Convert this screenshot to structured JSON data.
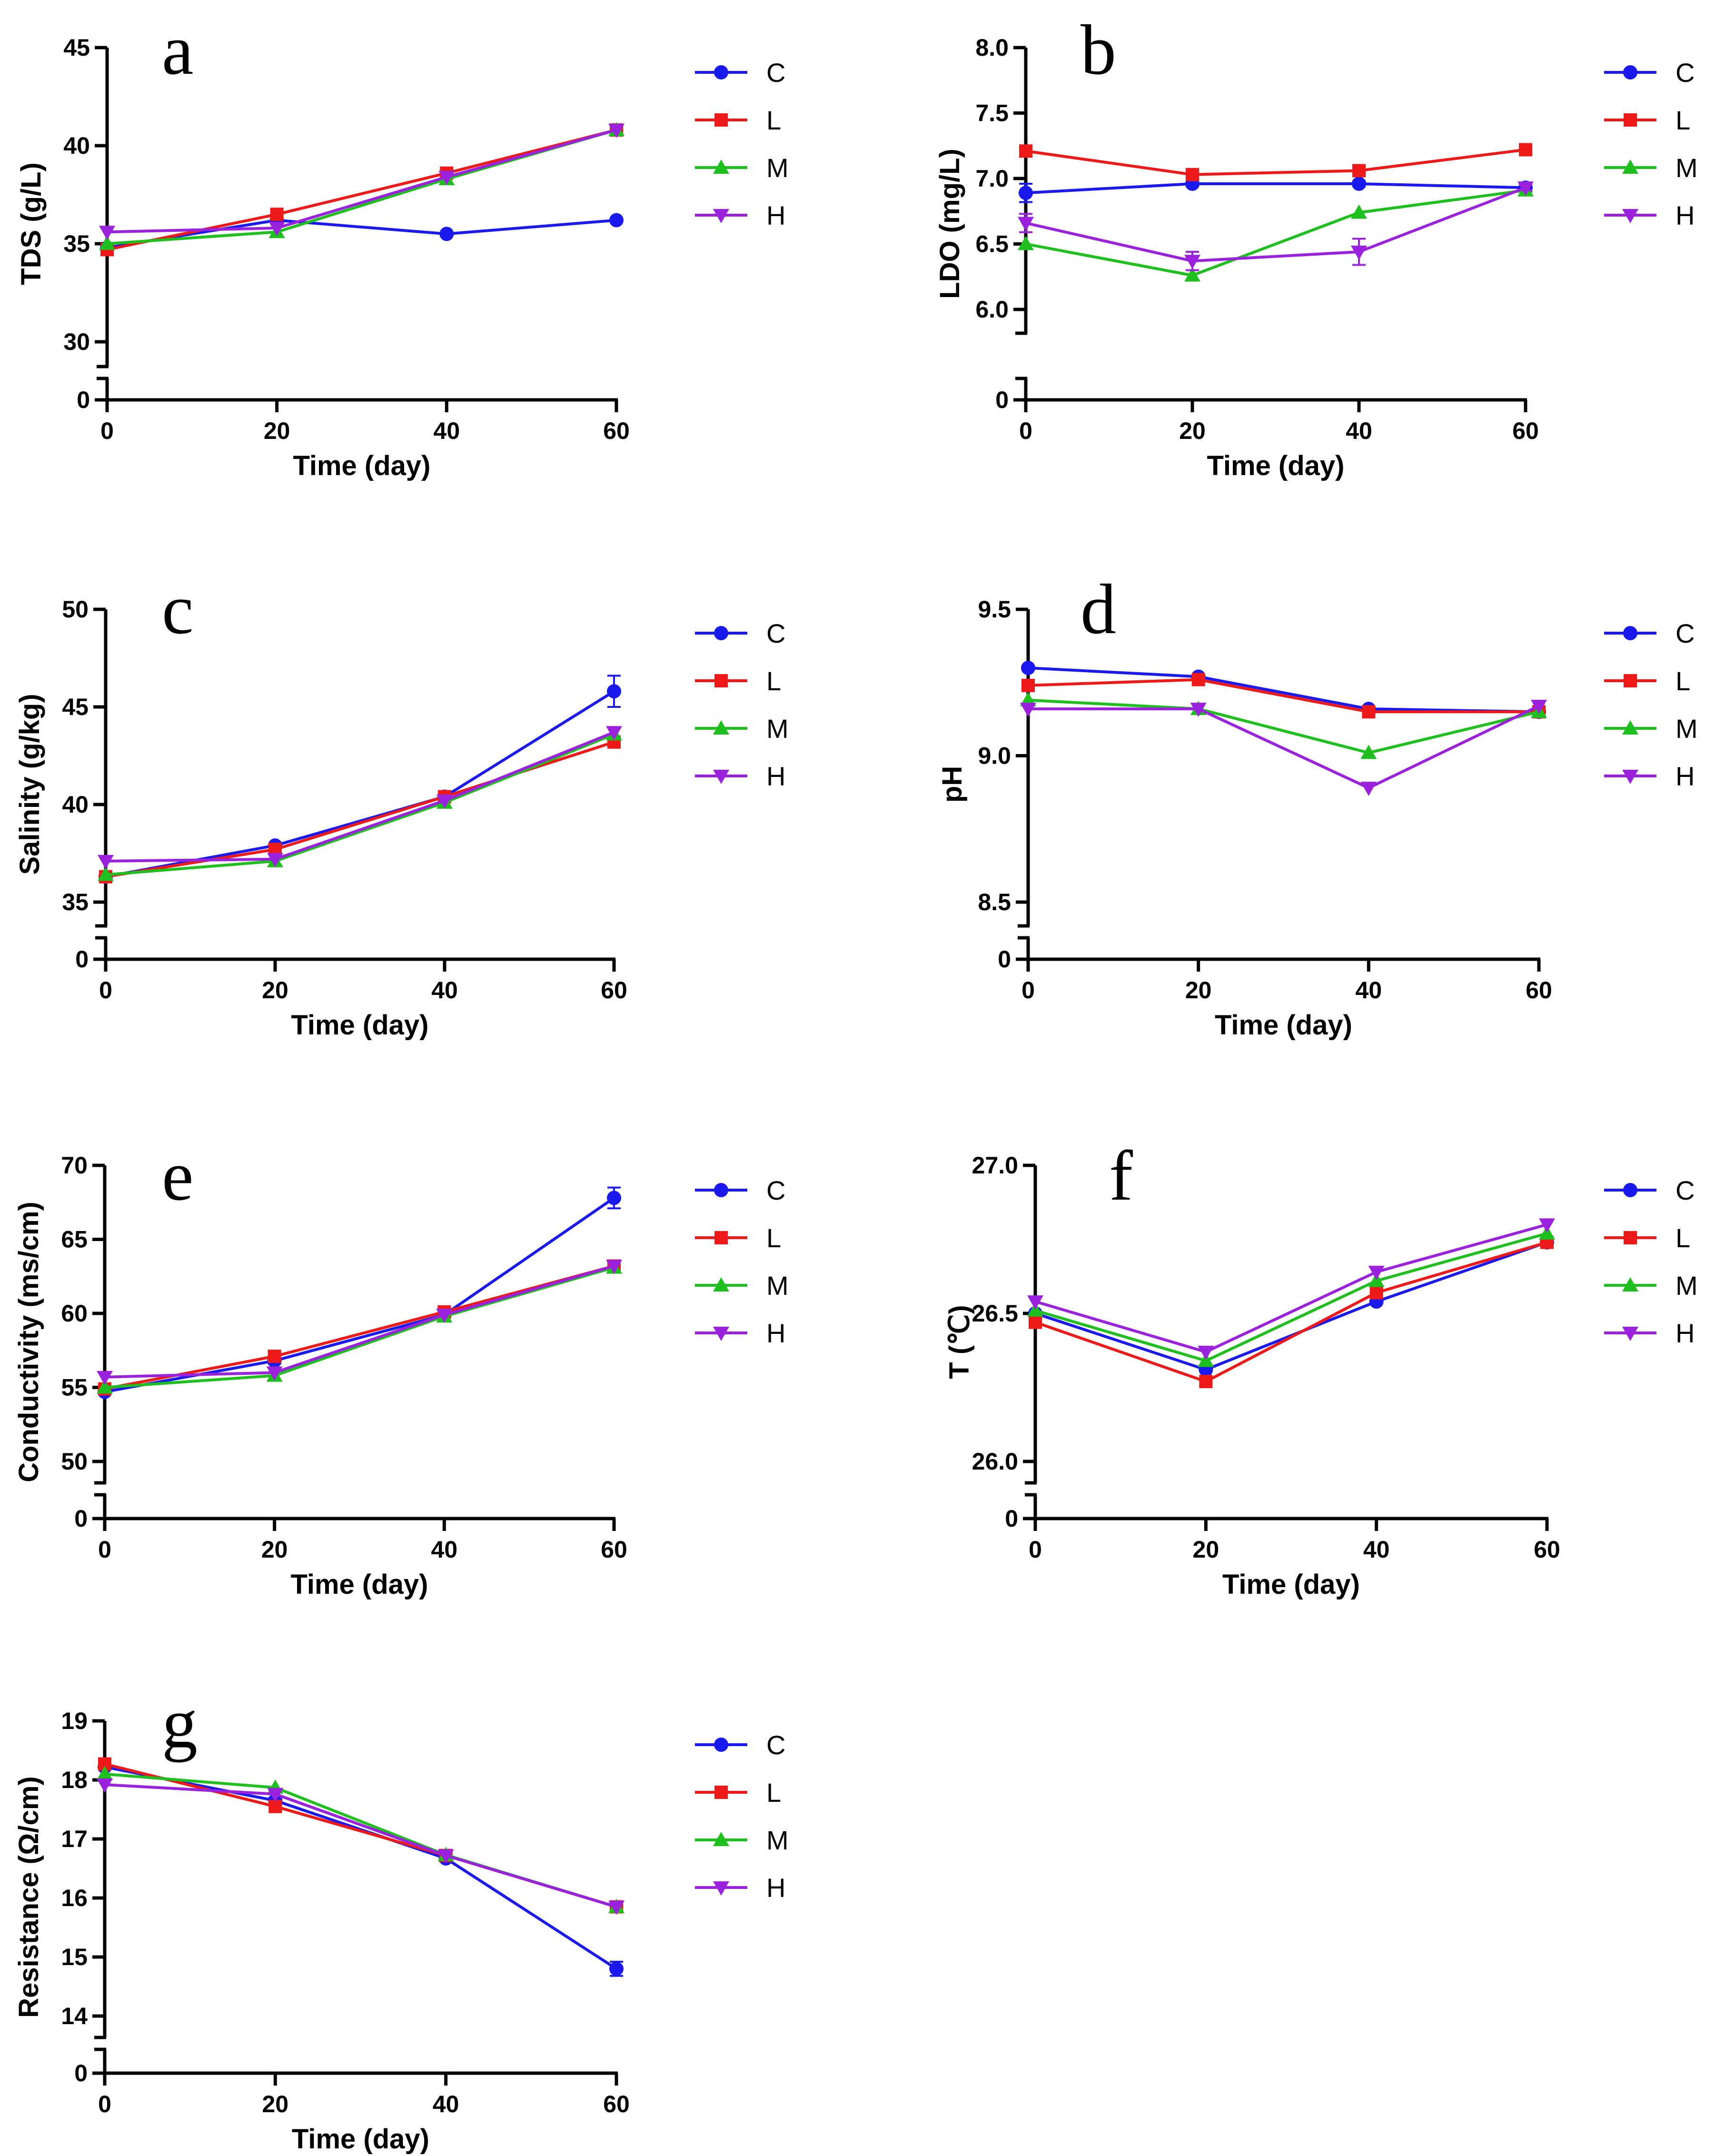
{
  "series_colors": {
    "C": "#1a1aee",
    "L": "#ee1a1a",
    "M": "#1fbf1f",
    "H": "#9a22dd"
  },
  "chart_data": [
    {
      "id": "a",
      "type": "line",
      "letter": "a",
      "xlabel": "Time (day)",
      "ylabel": "TDS (g/L)",
      "x": [
        0,
        20,
        40,
        60
      ],
      "x_ticks": [
        "0",
        "20",
        "40",
        "60"
      ],
      "ylim": [
        30,
        45
      ],
      "y_ticks": [
        "30",
        "35",
        "40",
        "45"
      ],
      "y_break_zero": "0",
      "series": [
        {
          "name": "C",
          "values": [
            34.8,
            36.2,
            35.5,
            36.2
          ]
        },
        {
          "name": "L",
          "values": [
            34.7,
            36.5,
            38.6,
            40.8
          ]
        },
        {
          "name": "M",
          "values": [
            35.0,
            35.6,
            38.3,
            40.8
          ]
        },
        {
          "name": "H",
          "values": [
            35.6,
            35.8,
            38.4,
            40.8
          ]
        }
      ]
    },
    {
      "id": "b",
      "type": "line",
      "letter": "b",
      "xlabel": "Time (day)",
      "ylabel": "LDO (mg/L)",
      "x": [
        0,
        20,
        40,
        60
      ],
      "x_ticks": [
        "0",
        "20",
        "40",
        "60"
      ],
      "ylim": [
        6.0,
        8.0
      ],
      "y_ticks": [
        "6.0",
        "6.5",
        "7.0",
        "7.5",
        "8.0"
      ],
      "y_break_zero": "0",
      "series": [
        {
          "name": "C",
          "values": [
            6.89,
            6.96,
            6.96,
            6.93
          ],
          "errors": [
            0.07,
            0.02,
            0.02,
            0.03
          ]
        },
        {
          "name": "L",
          "values": [
            7.21,
            7.03,
            7.06,
            7.22
          ]
        },
        {
          "name": "M",
          "values": [
            6.5,
            6.26,
            6.74,
            6.91
          ]
        },
        {
          "name": "H",
          "values": [
            6.66,
            6.37,
            6.44,
            6.93
          ],
          "errors": [
            0.07,
            0.07,
            0.1,
            0.02
          ]
        }
      ]
    },
    {
      "id": "c",
      "type": "line",
      "letter": "c",
      "xlabel": "Time (day)",
      "ylabel": "Salinity (g/kg)",
      "x": [
        0,
        20,
        40,
        60
      ],
      "x_ticks": [
        "0",
        "20",
        "40",
        "60"
      ],
      "ylim": [
        35,
        50
      ],
      "y_ticks": [
        "35",
        "40",
        "45",
        "50"
      ],
      "y_break_zero": "0",
      "series": [
        {
          "name": "C",
          "values": [
            36.3,
            37.9,
            40.4,
            45.8
          ],
          "errors": [
            0.1,
            0.1,
            0.1,
            0.8
          ]
        },
        {
          "name": "L",
          "values": [
            36.3,
            37.7,
            40.4,
            43.2
          ]
        },
        {
          "name": "M",
          "values": [
            36.4,
            37.1,
            40.1,
            43.6
          ]
        },
        {
          "name": "H",
          "values": [
            37.1,
            37.2,
            40.2,
            43.7
          ]
        }
      ]
    },
    {
      "id": "d",
      "type": "line",
      "letter": "d",
      "xlabel": "Time (day)",
      "ylabel": "pH",
      "x": [
        0,
        20,
        40,
        60
      ],
      "x_ticks": [
        "0",
        "20",
        "40",
        "60"
      ],
      "ylim": [
        8.5,
        9.5
      ],
      "y_ticks": [
        "8.5",
        "9.0",
        "9.5"
      ],
      "y_break_zero": "0",
      "series": [
        {
          "name": "C",
          "values": [
            9.3,
            9.27,
            9.16,
            9.15
          ]
        },
        {
          "name": "L",
          "values": [
            9.24,
            9.26,
            9.15,
            9.15
          ]
        },
        {
          "name": "M",
          "values": [
            9.19,
            9.16,
            9.01,
            9.15
          ]
        },
        {
          "name": "H",
          "values": [
            9.16,
            9.16,
            8.89,
            9.17
          ]
        }
      ]
    },
    {
      "id": "e",
      "type": "line",
      "letter": "e",
      "xlabel": "Time (day)",
      "ylabel": "Conductivity (ms/cm)",
      "x": [
        0,
        20,
        40,
        60
      ],
      "x_ticks": [
        "0",
        "20",
        "40",
        "60"
      ],
      "ylim": [
        50,
        70
      ],
      "y_ticks": [
        "50",
        "55",
        "60",
        "65",
        "70"
      ],
      "y_break_zero": "0",
      "series": [
        {
          "name": "C",
          "values": [
            54.7,
            56.8,
            59.9,
            67.8
          ],
          "errors": [
            0.2,
            0.2,
            0.2,
            0.7
          ]
        },
        {
          "name": "L",
          "values": [
            54.9,
            57.1,
            60.1,
            63.2
          ]
        },
        {
          "name": "M",
          "values": [
            55.0,
            55.8,
            59.8,
            63.1
          ]
        },
        {
          "name": "H",
          "values": [
            55.7,
            56.0,
            59.9,
            63.2
          ]
        }
      ]
    },
    {
      "id": "f",
      "type": "line",
      "letter": "f",
      "xlabel": "Time (day)",
      "ylabel": "T (℃)",
      "x": [
        0,
        20,
        40,
        60
      ],
      "x_ticks": [
        "0",
        "20",
        "40",
        "60"
      ],
      "ylim": [
        26.0,
        27.0
      ],
      "y_ticks": [
        "26.0",
        "26.5",
        "27.0"
      ],
      "y_break_zero": "0",
      "series": [
        {
          "name": "C",
          "values": [
            26.5,
            26.31,
            26.54,
            26.74
          ]
        },
        {
          "name": "L",
          "values": [
            26.47,
            26.27,
            26.57,
            26.74
          ]
        },
        {
          "name": "M",
          "values": [
            26.51,
            26.34,
            26.61,
            26.77
          ]
        },
        {
          "name": "H",
          "values": [
            26.54,
            26.37,
            26.64,
            26.8
          ]
        }
      ]
    },
    {
      "id": "g",
      "type": "line",
      "letter": "g",
      "xlabel": "Time (day)",
      "ylabel": "Resistance (Ω/cm)",
      "x": [
        0,
        20,
        40,
        60
      ],
      "x_ticks": [
        "0",
        "20",
        "40",
        "60"
      ],
      "ylim": [
        14,
        19
      ],
      "y_ticks": [
        "14",
        "15",
        "16",
        "17",
        "18",
        "19"
      ],
      "y_break_zero": "0",
      "series": [
        {
          "name": "C",
          "values": [
            18.22,
            17.65,
            16.67,
            14.8
          ],
          "errors": [
            0.05,
            0.05,
            0.05,
            0.12
          ]
        },
        {
          "name": "L",
          "values": [
            18.27,
            17.55,
            16.72,
            15.85
          ]
        },
        {
          "name": "M",
          "values": [
            18.1,
            17.87,
            16.73,
            15.85
          ]
        },
        {
          "name": "H",
          "values": [
            17.92,
            17.76,
            16.72,
            15.85
          ]
        }
      ]
    }
  ]
}
